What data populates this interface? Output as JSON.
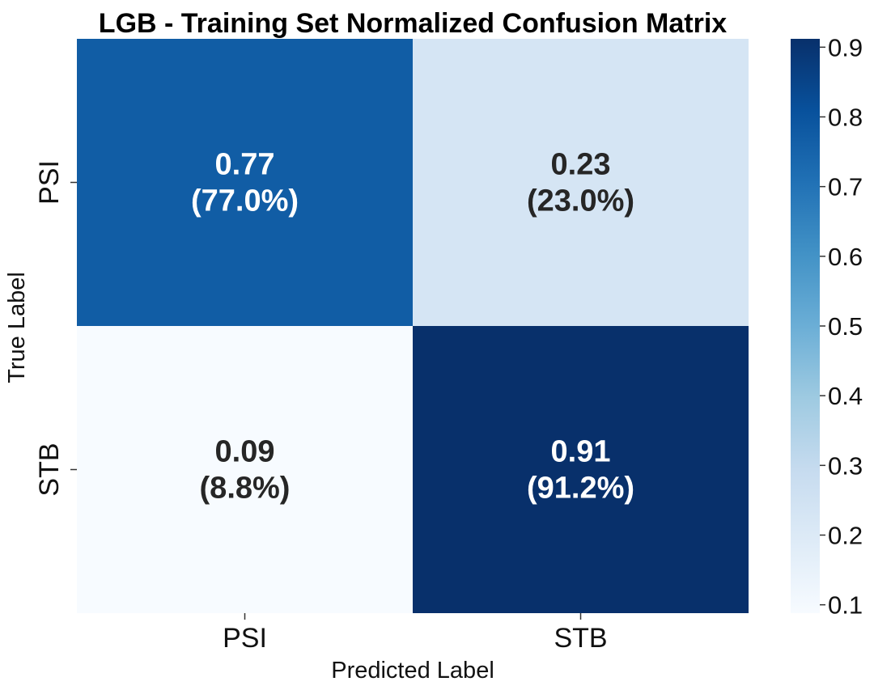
{
  "chart_data": {
    "type": "heatmap",
    "title": "LGB - Training Set Normalized Confusion Matrix",
    "xlabel": "Predicted Label",
    "ylabel": "True Label",
    "x_categories": [
      "PSI",
      "STB"
    ],
    "y_categories": [
      "PSI",
      "STB"
    ],
    "values": [
      [
        0.77,
        0.23
      ],
      [
        0.088,
        0.912
      ]
    ],
    "cell_labels": [
      [
        {
          "value": "0.77",
          "percent": "(77.0%)"
        },
        {
          "value": "0.23",
          "percent": "(23.0%)"
        }
      ],
      [
        {
          "value": "0.09",
          "percent": "(8.8%)"
        },
        {
          "value": "0.91",
          "percent": "(91.2%)"
        }
      ]
    ],
    "colormap": "Blues",
    "color_range": [
      0.088,
      0.912
    ],
    "colorbar_ticks": [
      0.1,
      0.2,
      0.3,
      0.4,
      0.5,
      0.6,
      0.7,
      0.8,
      0.9
    ],
    "colorbar_tick_labels": [
      "0.1",
      "0.2",
      "0.3",
      "0.4",
      "0.5",
      "0.6",
      "0.7",
      "0.8",
      "0.9"
    ],
    "colorbar_placement": "right"
  }
}
